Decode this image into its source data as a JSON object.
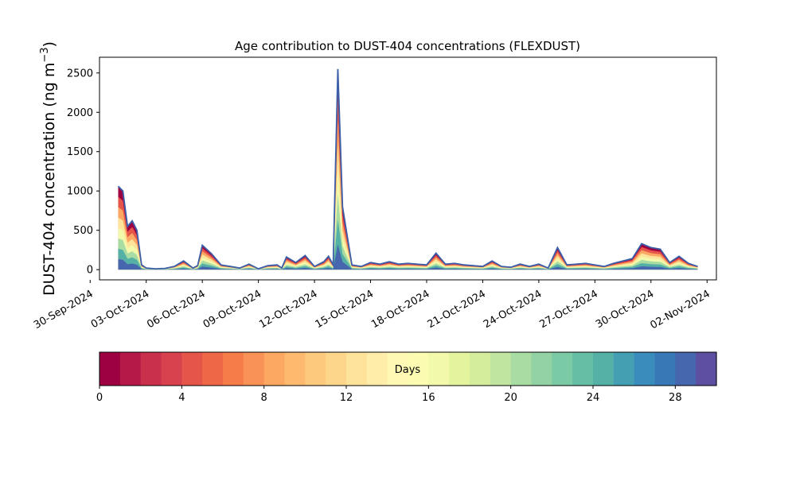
{
  "chart_data": {
    "type": "area",
    "title": "Age contribution to DUST-404 concentrations (FLEXDUST)",
    "ylabel_main": "DUST-404 concentration (ng m",
    "ylabel_sup": "−3",
    "ylabel_close": ")",
    "xlabel": "",
    "ylim": [
      -130,
      2700
    ],
    "xlim": [
      "2024-09-30T12:00",
      "2024-11-02T12:00"
    ],
    "yticks": [
      0,
      500,
      1000,
      1500,
      2000,
      2500
    ],
    "ytick_labels": [
      "0",
      "500",
      "1000",
      "1500",
      "2000",
      "2500"
    ],
    "xticks": [
      "2024-09-30",
      "2024-10-03",
      "2024-10-06",
      "2024-10-09",
      "2024-10-12",
      "2024-10-15",
      "2024-10-18",
      "2024-10-21",
      "2024-10-24",
      "2024-10-27",
      "2024-10-30",
      "2024-11-02"
    ],
    "xtick_labels": [
      "30-Sep-2024",
      "03-Oct-2024",
      "06-Oct-2024",
      "09-Oct-2024",
      "12-Oct-2024",
      "15-Oct-2024",
      "18-Oct-2024",
      "21-Oct-2024",
      "24-Oct-2024",
      "27-Oct-2024",
      "30-Oct-2024",
      "02-Nov-2024"
    ],
    "total_series": {
      "x": [
        "2024-10-01T12:00",
        "2024-10-01T18:00",
        "2024-10-02T00:00",
        "2024-10-02T06:00",
        "2024-10-02T12:00",
        "2024-10-02T18:00",
        "2024-10-03T00:00",
        "2024-10-03T12:00",
        "2024-10-04T00:00",
        "2024-10-04T12:00",
        "2024-10-05T00:00",
        "2024-10-05T12:00",
        "2024-10-05T18:00",
        "2024-10-06T00:00",
        "2024-10-06T12:00",
        "2024-10-07T00:00",
        "2024-10-07T12:00",
        "2024-10-08T00:00",
        "2024-10-08T12:00",
        "2024-10-09T00:00",
        "2024-10-09T12:00",
        "2024-10-10T00:00",
        "2024-10-10T06:00",
        "2024-10-10T12:00",
        "2024-10-11T00:00",
        "2024-10-11T12:00",
        "2024-10-12T00:00",
        "2024-10-12T12:00",
        "2024-10-12T18:00",
        "2024-10-13T00:00",
        "2024-10-13T06:00",
        "2024-10-13T12:00",
        "2024-10-14T00:00",
        "2024-10-14T12:00",
        "2024-10-15T00:00",
        "2024-10-15T12:00",
        "2024-10-16T00:00",
        "2024-10-16T12:00",
        "2024-10-17T00:00",
        "2024-10-17T12:00",
        "2024-10-18T00:00",
        "2024-10-18T12:00",
        "2024-10-19T00:00",
        "2024-10-19T12:00",
        "2024-10-20T00:00",
        "2024-10-20T12:00",
        "2024-10-21T00:00",
        "2024-10-21T12:00",
        "2024-10-22T00:00",
        "2024-10-22T12:00",
        "2024-10-23T00:00",
        "2024-10-23T12:00",
        "2024-10-24T00:00",
        "2024-10-24T12:00",
        "2024-10-25T00:00",
        "2024-10-25T12:00",
        "2024-10-26T00:00",
        "2024-10-26T12:00",
        "2024-10-27T00:00",
        "2024-10-27T12:00",
        "2024-10-28T00:00",
        "2024-10-28T12:00",
        "2024-10-29T00:00",
        "2024-10-29T12:00",
        "2024-10-30T00:00",
        "2024-10-30T12:00",
        "2024-10-31T00:00",
        "2024-10-31T12:00",
        "2024-11-01T00:00",
        "2024-11-01T12:00"
      ],
      "y": [
        1060,
        1000,
        550,
        620,
        500,
        60,
        20,
        10,
        15,
        40,
        110,
        20,
        50,
        310,
        200,
        60,
        40,
        20,
        70,
        10,
        50,
        60,
        20,
        160,
        90,
        180,
        40,
        100,
        170,
        60,
        2550,
        800,
        60,
        40,
        90,
        70,
        100,
        70,
        80,
        70,
        60,
        210,
        70,
        80,
        60,
        50,
        40,
        110,
        40,
        30,
        70,
        40,
        70,
        20,
        280,
        60,
        70,
        80,
        60,
        40,
        80,
        110,
        140,
        330,
        280,
        260,
        90,
        170,
        80,
        40
      ]
    },
    "age_bands_days": [
      0,
      4,
      8,
      12,
      16,
      20,
      24,
      28,
      30
    ],
    "series_color": "#3b5fa8",
    "colorbar": {
      "label": "Days",
      "min": 0,
      "max": 30,
      "ticks": [
        0,
        4,
        8,
        12,
        16,
        20,
        24,
        28
      ],
      "tick_labels": [
        "0",
        "4",
        "8",
        "12",
        "16",
        "20",
        "24",
        "28"
      ],
      "colors": [
        "#9e0142",
        "#b41947",
        "#c9304c",
        "#d8424e",
        "#e5554a",
        "#ee6746",
        "#f67c4a",
        "#f99256",
        "#fca762",
        "#fdba6f",
        "#fdc97d",
        "#fed68b",
        "#fee39a",
        "#ffeda9",
        "#fff7b4",
        "#fbfbb1",
        "#f2f9ab",
        "#e4f49e",
        "#d4ed9c",
        "#bfe5a0",
        "#a9dca3",
        "#93d2a5",
        "#7acaa5",
        "#66bea5",
        "#55b1a6",
        "#459fb3",
        "#3a8cbc",
        "#3978b6",
        "#4666ae",
        "#5e4fa2"
      ]
    },
    "legend": "none",
    "grid": false
  }
}
